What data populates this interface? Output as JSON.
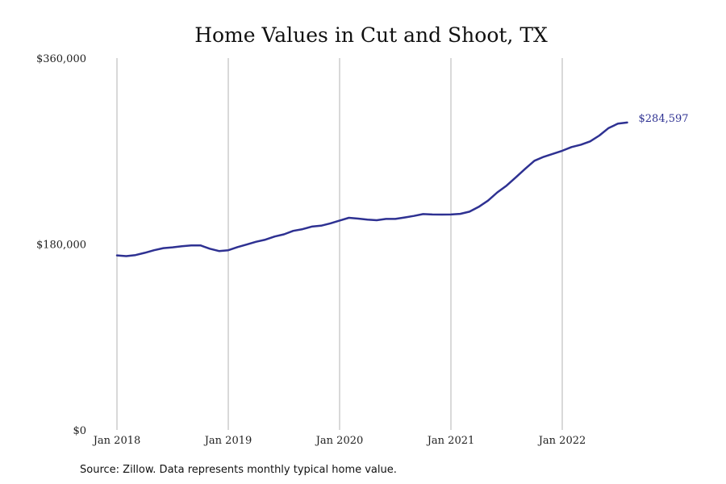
{
  "chart_data": {
    "type": "line",
    "title": "Home Values in Cut and Shoot, TX",
    "xlabel": "",
    "ylabel": "",
    "ylim": [
      0,
      360000
    ],
    "y_ticks": [
      {
        "value": 0,
        "label": "$0"
      },
      {
        "value": 180000,
        "label": "$180,000"
      },
      {
        "value": 360000,
        "label": "$360,000"
      }
    ],
    "x_ticks": [
      {
        "value": "2018-01",
        "label": "Jan 2018"
      },
      {
        "value": "2019-01",
        "label": "Jan 2019"
      },
      {
        "value": "2020-01",
        "label": "Jan 2020"
      },
      {
        "value": "2021-01",
        "label": "Jan 2021"
      },
      {
        "value": "2022-01",
        "label": "Jan 2022"
      }
    ],
    "x_range": [
      "2018-01",
      "2022-10"
    ],
    "grid": {
      "vertical": true,
      "horizontal": false
    },
    "legend": "none",
    "line_color": "#2e3192",
    "end_label": "$284,597",
    "series": [
      {
        "x": [
          "2018-01",
          "2018-02",
          "2018-03",
          "2018-04",
          "2018-05",
          "2018-06",
          "2018-07",
          "2018-08",
          "2018-09",
          "2018-10",
          "2018-11",
          "2018-12",
          "2019-01",
          "2019-02",
          "2019-03",
          "2019-04",
          "2019-05",
          "2019-06",
          "2019-07",
          "2019-08",
          "2019-09",
          "2019-10",
          "2019-11",
          "2019-12",
          "2020-01",
          "2020-02",
          "2020-03",
          "2020-04",
          "2020-05",
          "2020-06",
          "2020-07",
          "2020-08",
          "2020-09",
          "2020-10",
          "2020-11",
          "2020-12",
          "2021-01",
          "2021-02",
          "2021-03",
          "2021-04",
          "2021-05",
          "2021-06",
          "2021-07",
          "2021-08",
          "2021-09",
          "2021-10",
          "2021-11",
          "2021-12",
          "2022-01",
          "2022-02",
          "2022-03",
          "2022-04",
          "2022-05",
          "2022-06",
          "2022-07",
          "2022-08"
        ],
        "values": [
          169000,
          168300,
          169300,
          171500,
          174000,
          176000,
          176800,
          177800,
          178700,
          178700,
          175500,
          173200,
          174000,
          177000,
          179500,
          182200,
          184200,
          187300,
          189400,
          192700,
          194400,
          196900,
          197700,
          200000,
          202700,
          205400,
          204600,
          203700,
          203000,
          204300,
          204300,
          205700,
          207200,
          209000,
          208600,
          208500,
          208600,
          209200,
          211300,
          216000,
          222000,
          230000,
          236500,
          244600,
          252800,
          260600,
          264400,
          267300,
          270300,
          273900,
          276100,
          279300,
          285000,
          292300,
          296500,
          297600
        ]
      }
    ]
  },
  "source_note": "Source: Zillow. Data represents monthly typical home value."
}
